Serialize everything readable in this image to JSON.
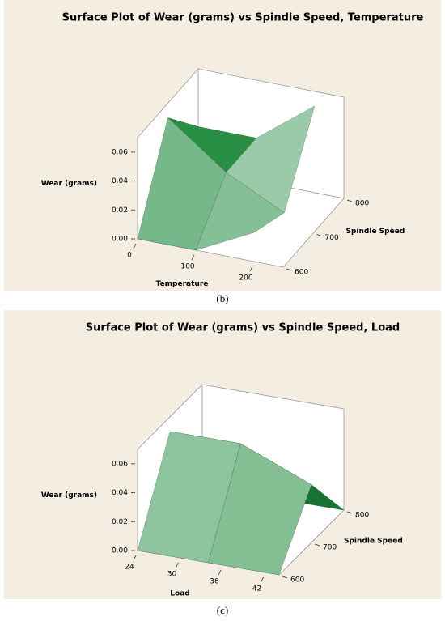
{
  "chart_data": [
    {
      "type": "surface",
      "title": "Surface Plot of Wear (grams) vs Spindle Speed, Temperature",
      "xlabel": "Temperature",
      "ylabel": "Spindle Speed",
      "zlabel": "Wear (grams)",
      "caption": "(b)",
      "x": [
        0,
        100,
        200
      ],
      "y": [
        600,
        700,
        800
      ],
      "z": [
        [
          0.0,
          0.0,
          0.02
        ],
        [
          0.06,
          0.03,
          0.01
        ],
        [
          0.03,
          0.03,
          0.06
        ]
      ],
      "xlim": [
        0,
        250
      ],
      "ylim": [
        600,
        800
      ],
      "zlim": [
        0,
        0.07
      ],
      "xticks": [
        0,
        100,
        200
      ],
      "yticks": [
        600,
        700,
        800
      ],
      "zticks": [
        {
          "value": 0,
          "label": "0.00"
        },
        {
          "value": 0.02,
          "label": "0.02"
        },
        {
          "value": 0.04,
          "label": "0.04"
        },
        {
          "value": 0.06,
          "label": "0.06"
        }
      ],
      "color": "#1e8a3c"
    },
    {
      "type": "surface",
      "title": "Surface Plot of Wear (grams) vs Spindle Speed, Load",
      "xlabel": "Load",
      "ylabel": "Spindle Speed",
      "zlabel": "Wear (grams)",
      "caption": "(c)",
      "x": [
        24,
        34,
        44
      ],
      "y": [
        600,
        700,
        800
      ],
      "z": [
        [
          0.0,
          0.0,
          0.0
        ],
        [
          0.06,
          0.06,
          0.04
        ],
        [
          0.0,
          0.0,
          0.0
        ]
      ],
      "xlim": [
        24,
        44
      ],
      "ylim": [
        600,
        800
      ],
      "zlim": [
        0,
        0.07
      ],
      "xticks": [
        24,
        30,
        36,
        42
      ],
      "yticks": [
        600,
        700,
        800
      ],
      "zticks": [
        {
          "value": 0,
          "label": "0.00"
        },
        {
          "value": 0.02,
          "label": "0.02"
        },
        {
          "value": 0.04,
          "label": "0.04"
        },
        {
          "value": 0.06,
          "label": "0.06"
        }
      ],
      "color": "#1e8a3c"
    }
  ]
}
